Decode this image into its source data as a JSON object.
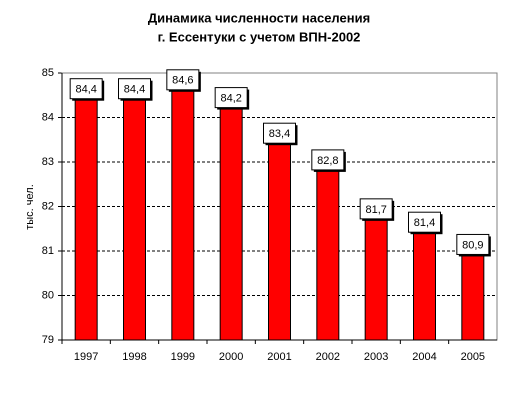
{
  "chart_data": {
    "type": "bar",
    "title": "Динамика численности населения",
    "subtitle": "г. Ессентуки с учетом ВПН-2002",
    "y_label": "тыс. чел.",
    "categories": [
      "1997",
      "1998",
      "1999",
      "2000",
      "2001",
      "2002",
      "2003",
      "2004",
      "2005"
    ],
    "values": [
      84.4,
      84.4,
      84.6,
      84.2,
      83.4,
      82.8,
      81.7,
      81.4,
      80.9
    ],
    "value_labels": [
      "84,4",
      "84,4",
      "84,6",
      "84,2",
      "83,4",
      "82,8",
      "81,7",
      "81,4",
      "80,9"
    ],
    "color": "#ff0000",
    "ylim": [
      79,
      85
    ],
    "yticks": [
      79,
      80,
      81,
      82,
      83,
      84,
      85
    ],
    "grid": true
  }
}
